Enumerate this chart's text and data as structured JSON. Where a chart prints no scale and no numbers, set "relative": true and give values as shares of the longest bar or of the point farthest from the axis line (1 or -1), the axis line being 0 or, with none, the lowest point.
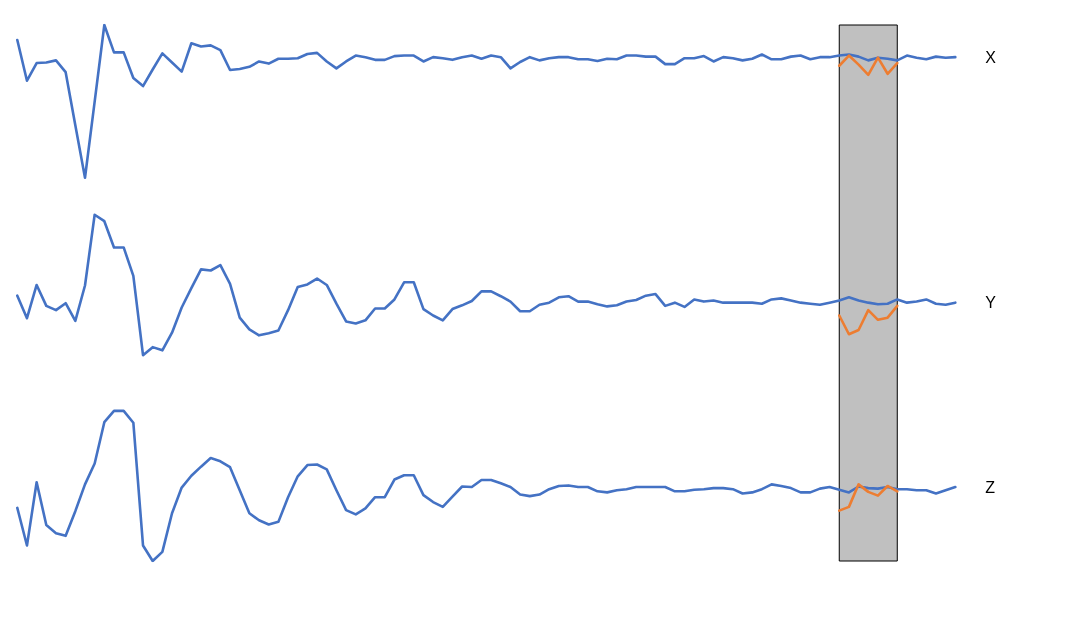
{
  "chart_data": {
    "type": "line",
    "relative": true,
    "legend": false,
    "grid": false,
    "marker": "none",
    "categories": [
      null,
      null,
      null,
      null,
      null,
      null,
      null,
      null,
      null,
      null,
      null,
      null,
      null,
      null,
      null,
      null,
      null,
      null,
      null,
      null,
      null,
      null,
      null,
      null,
      null,
      null,
      null,
      null,
      null,
      null,
      null,
      null,
      null,
      null,
      null,
      null,
      null,
      null,
      null,
      null,
      null,
      null,
      null,
      null,
      null,
      null,
      null,
      null,
      null,
      null,
      null,
      null,
      null,
      null,
      null,
      null,
      null,
      null,
      null,
      null,
      null,
      null,
      null,
      null,
      null,
      null,
      null,
      null,
      null,
      null,
      null,
      null,
      null,
      null,
      null,
      null,
      null,
      null,
      null,
      null,
      null,
      null,
      null,
      null,
      null,
      null,
      null,
      null,
      null,
      null,
      null,
      null,
      null,
      null,
      null,
      null,
      null,
      null
    ],
    "series": [
      {
        "name": "X",
        "color": "#4472c4",
        "values": [
          0.972,
          0.896,
          0.929,
          0.93,
          0.934,
          0.912,
          0.813,
          0.715,
          0.857,
          1,
          0.949,
          0.949,
          0.901,
          0.886,
          0.917,
          0.947,
          0.93,
          0.913,
          0.966,
          0.96,
          0.962,
          0.953,
          0.916,
          0.918,
          0.922,
          0.932,
          0.928,
          0.937,
          0.937,
          0.938,
          0.946,
          0.948,
          0.932,
          0.919,
          0.932,
          0.943,
          0.94,
          0.935,
          0.935,
          0.942,
          0.943,
          0.943,
          0.932,
          0.94,
          0.938,
          0.935,
          0.94,
          0.943,
          0.937,
          0.943,
          0.94,
          0.919,
          0.931,
          0.94,
          0.934,
          0.938,
          0.94,
          0.94,
          0.936,
          0.936,
          0.933,
          0.937,
          0.936,
          0.943,
          0.943,
          0.941,
          0.941,
          0.927,
          0.927,
          0.938,
          0.938,
          0.942,
          0.932,
          0.94,
          0.938,
          0.934,
          0.937,
          0.945,
          0.936,
          0.936,
          0.941,
          0.943,
          0.936,
          0.94,
          0.94,
          0.943,
          0.945,
          0.941,
          0.934,
          0.939,
          0.937,
          0.934,
          0.943,
          0.939,
          0.936,
          0.941,
          0.939,
          0.94
        ]
      },
      {
        "name": "Y",
        "color": "#4472c4",
        "values": [
          0.495,
          0.453,
          0.515,
          0.476,
          0.468,
          0.481,
          0.448,
          0.514,
          0.646,
          0.634,
          0.585,
          0.585,
          0.532,
          0.384,
          0.399,
          0.393,
          0.426,
          0.473,
          0.509,
          0.544,
          0.542,
          0.552,
          0.517,
          0.454,
          0.432,
          0.421,
          0.425,
          0.43,
          0.468,
          0.511,
          0.516,
          0.527,
          0.515,
          0.48,
          0.447,
          0.443,
          0.449,
          0.471,
          0.471,
          0.488,
          0.52,
          0.52,
          0.47,
          0.458,
          0.449,
          0.47,
          0.477,
          0.485,
          0.503,
          0.503,
          0.494,
          0.484,
          0.466,
          0.466,
          0.478,
          0.482,
          0.492,
          0.494,
          0.484,
          0.484,
          0.479,
          0.475,
          0.477,
          0.484,
          0.487,
          0.495,
          0.498,
          0.476,
          0.482,
          0.474,
          0.488,
          0.484,
          0.486,
          0.482,
          0.482,
          0.482,
          0.482,
          0.48,
          0.488,
          0.49,
          0.486,
          0.482,
          0.48,
          0.478,
          0.482,
          0.486,
          0.492,
          0.486,
          0.482,
          0.479,
          0.48,
          0.488,
          0.482,
          0.484,
          0.488,
          0.48,
          0.478,
          0.482
        ]
      },
      {
        "name": "Z",
        "color": "#4472c4",
        "values": [
          0.099,
          0.029,
          0.147,
          0.067,
          0.052,
          0.047,
          0.093,
          0.143,
          0.182,
          0.259,
          0.28,
          0.28,
          0.258,
          0.029,
          0,
          0.017,
          0.089,
          0.137,
          0.159,
          0.176,
          0.192,
          0.186,
          0.175,
          0.132,
          0.089,
          0.076,
          0.068,
          0.073,
          0.119,
          0.158,
          0.179,
          0.18,
          0.171,
          0.132,
          0.095,
          0.087,
          0.098,
          0.119,
          0.119,
          0.152,
          0.16,
          0.16,
          0.123,
          0.11,
          0.101,
          0.12,
          0.139,
          0.138,
          0.151,
          0.151,
          0.145,
          0.138,
          0.124,
          0.121,
          0.124,
          0.134,
          0.14,
          0.141,
          0.138,
          0.138,
          0.13,
          0.128,
          0.132,
          0.134,
          0.138,
          0.138,
          0.138,
          0.138,
          0.13,
          0.13,
          0.133,
          0.134,
          0.136,
          0.136,
          0.134,
          0.126,
          0.128,
          0.134,
          0.143,
          0.14,
          0.136,
          0.128,
          0.128,
          0.135,
          0.138,
          0.133,
          0.128,
          0.139,
          0.136,
          0.135,
          0.138,
          0.134,
          0.134,
          0.132,
          0.132,
          0.126,
          0.132,
          0.138
        ]
      },
      {
        "color": "#ed7d31",
        "values": [
          null,
          null,
          null,
          null,
          null,
          null,
          null,
          null,
          null,
          null,
          null,
          null,
          null,
          null,
          null,
          null,
          null,
          null,
          null,
          null,
          null,
          null,
          null,
          null,
          null,
          null,
          null,
          null,
          null,
          null,
          null,
          null,
          null,
          null,
          null,
          null,
          null,
          null,
          null,
          null,
          null,
          null,
          null,
          null,
          null,
          null,
          null,
          null,
          null,
          null,
          null,
          null,
          null,
          null,
          null,
          null,
          null,
          null,
          null,
          null,
          null,
          null,
          null,
          null,
          null,
          null,
          null,
          null,
          null,
          null,
          null,
          null,
          null,
          null,
          null,
          null,
          null,
          null,
          null,
          null,
          null,
          null,
          null,
          null,
          null,
          0.924,
          0.943,
          0.926,
          0.907,
          0.939,
          0.909,
          0.929,
          null,
          null,
          null,
          null,
          null,
          null
        ]
      },
      {
        "color": "#ed7d31",
        "values": [
          null,
          null,
          null,
          null,
          null,
          null,
          null,
          null,
          null,
          null,
          null,
          null,
          null,
          null,
          null,
          null,
          null,
          null,
          null,
          null,
          null,
          null,
          null,
          null,
          null,
          null,
          null,
          null,
          null,
          null,
          null,
          null,
          null,
          null,
          null,
          null,
          null,
          null,
          null,
          null,
          null,
          null,
          null,
          null,
          null,
          null,
          null,
          null,
          null,
          null,
          null,
          null,
          null,
          null,
          null,
          null,
          null,
          null,
          null,
          null,
          null,
          null,
          null,
          null,
          null,
          null,
          null,
          null,
          null,
          null,
          null,
          null,
          null,
          null,
          null,
          null,
          null,
          null,
          null,
          null,
          null,
          null,
          null,
          null,
          null,
          0.458,
          0.423,
          0.431,
          0.468,
          0.45,
          0.454,
          0.476,
          null,
          null,
          null,
          null,
          null,
          null
        ]
      },
      {
        "color": "#ed7d31",
        "values": [
          null,
          null,
          null,
          null,
          null,
          null,
          null,
          null,
          null,
          null,
          null,
          null,
          null,
          null,
          null,
          null,
          null,
          null,
          null,
          null,
          null,
          null,
          null,
          null,
          null,
          null,
          null,
          null,
          null,
          null,
          null,
          null,
          null,
          null,
          null,
          null,
          null,
          null,
          null,
          null,
          null,
          null,
          null,
          null,
          null,
          null,
          null,
          null,
          null,
          null,
          null,
          null,
          null,
          null,
          null,
          null,
          null,
          null,
          null,
          null,
          null,
          null,
          null,
          null,
          null,
          null,
          null,
          null,
          null,
          null,
          null,
          null,
          null,
          null,
          null,
          null,
          null,
          null,
          null,
          null,
          null,
          null,
          null,
          null,
          null,
          0.094,
          0.101,
          0.143,
          0.129,
          0.122,
          0.14,
          0.13,
          null,
          null,
          null,
          null,
          null,
          null
        ]
      }
    ]
  }
}
